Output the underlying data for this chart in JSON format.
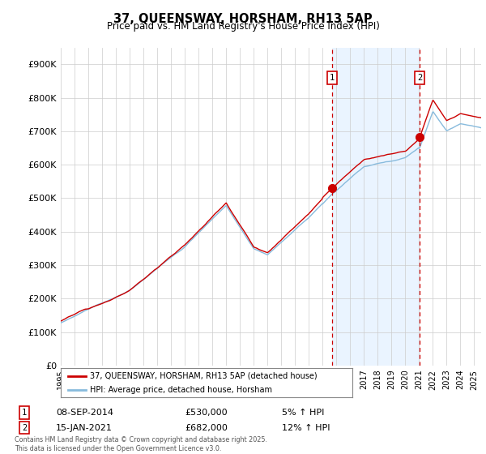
{
  "title": "37, QUEENSWAY, HORSHAM, RH13 5AP",
  "subtitle": "Price paid vs. HM Land Registry's House Price Index (HPI)",
  "ylim": [
    0,
    950000
  ],
  "yticks": [
    0,
    100000,
    200000,
    300000,
    400000,
    500000,
    600000,
    700000,
    800000,
    900000
  ],
  "ytick_labels": [
    "£0",
    "£100K",
    "£200K",
    "£300K",
    "£400K",
    "£500K",
    "£600K",
    "£700K",
    "£800K",
    "£900K"
  ],
  "line_color_red": "#cc0000",
  "line_color_blue": "#88bbdd",
  "shade_color": "#ddeeff",
  "vline_color": "#cc0000",
  "background_color": "#ffffff",
  "legend_label_red": "37, QUEENSWAY, HORSHAM, RH13 5AP (detached house)",
  "legend_label_blue": "HPI: Average price, detached house, Horsham",
  "annotation1_label": "1",
  "annotation1_date": "08-SEP-2014",
  "annotation1_price": "£530,000",
  "annotation1_hpi": "5% ↑ HPI",
  "annotation2_label": "2",
  "annotation2_date": "15-JAN-2021",
  "annotation2_price": "£682,000",
  "annotation2_hpi": "12% ↑ HPI",
  "footer": "Contains HM Land Registry data © Crown copyright and database right 2025.\nThis data is licensed under the Open Government Licence v3.0.",
  "vline1_x": 2014.69,
  "vline2_x": 2021.04,
  "sale1_x": 2014.69,
  "sale1_y": 530000,
  "sale2_x": 2021.04,
  "sale2_y": 682000,
  "xmin": 1995,
  "xmax": 2025.5
}
